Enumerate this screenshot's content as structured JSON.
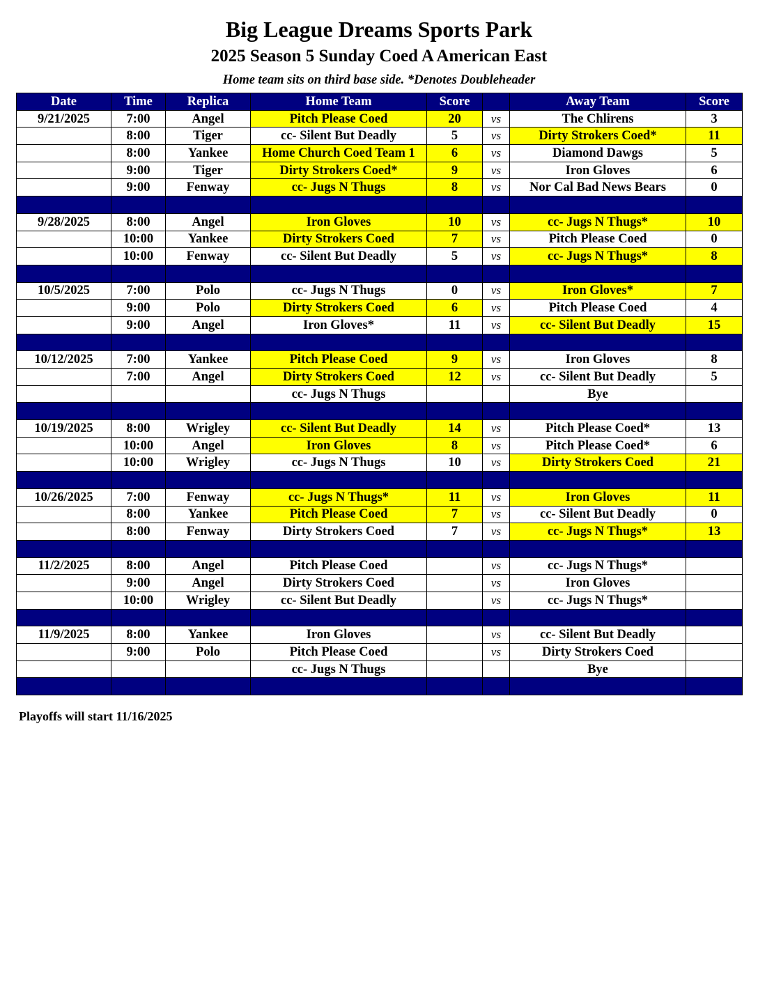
{
  "header": {
    "title": "Big League Dreams Sports Park",
    "subtitle": "2025 Season 5 Sunday Coed A American East",
    "note": "Home team sits on third base side.  *Denotes Doubleheader"
  },
  "colors": {
    "header_bg": "#000080",
    "header_text": "#ffffff",
    "highlight": "#ffff00"
  },
  "columns": [
    "Date",
    "Time",
    "Replica",
    "Home Team",
    "Score",
    "",
    "Away Team",
    "Score"
  ],
  "vs_label": "vs",
  "weeks": [
    {
      "date": "9/21/2025",
      "games": [
        {
          "time": "7:00",
          "replica": "Angel",
          "home": "Pitch Please Coed",
          "home_score": "20",
          "away": "The Chlirens",
          "away_score": "3",
          "home_hl": true,
          "away_hl": false
        },
        {
          "time": "8:00",
          "replica": "Tiger",
          "home": "cc- Silent But Deadly",
          "home_score": "5",
          "away": "Dirty Strokers Coed*",
          "away_score": "11",
          "home_hl": false,
          "away_hl": true
        },
        {
          "time": "8:00",
          "replica": "Yankee",
          "home": "Home Church Coed Team 1",
          "home_score": "6",
          "away": "Diamond Dawgs",
          "away_score": "5",
          "home_hl": true,
          "away_hl": false
        },
        {
          "time": "9:00",
          "replica": "Tiger",
          "home": "Dirty Strokers Coed*",
          "home_score": "9",
          "away": "Iron Gloves",
          "away_score": "6",
          "home_hl": true,
          "away_hl": false
        },
        {
          "time": "9:00",
          "replica": "Fenway",
          "home": "cc- Jugs N Thugs",
          "home_score": "8",
          "away": "Nor Cal Bad News Bears",
          "away_score": "0",
          "home_hl": true,
          "away_hl": false
        }
      ]
    },
    {
      "date": "9/28/2025",
      "games": [
        {
          "time": "8:00",
          "replica": "Angel",
          "home": "Iron Gloves",
          "home_score": "10",
          "away": "cc- Jugs N Thugs*",
          "away_score": "10",
          "home_hl": true,
          "away_hl": true
        },
        {
          "time": "10:00",
          "replica": "Yankee",
          "home": "Dirty Strokers Coed",
          "home_score": "7",
          "away": "Pitch Please Coed",
          "away_score": "0",
          "home_hl": true,
          "away_hl": false
        },
        {
          "time": "10:00",
          "replica": "Fenway",
          "home": "cc- Silent But Deadly",
          "home_score": "5",
          "away": "cc- Jugs N Thugs*",
          "away_score": "8",
          "home_hl": false,
          "away_hl": true
        }
      ]
    },
    {
      "date": "10/5/2025",
      "games": [
        {
          "time": "7:00",
          "replica": "Polo",
          "home": "cc- Jugs N Thugs",
          "home_score": "0",
          "away": "Iron Gloves*",
          "away_score": "7",
          "home_hl": false,
          "away_hl": true
        },
        {
          "time": "9:00",
          "replica": "Polo",
          "home": "Dirty Strokers Coed",
          "home_score": "6",
          "away": "Pitch Please Coed",
          "away_score": "4",
          "home_hl": true,
          "away_hl": false
        },
        {
          "time": "9:00",
          "replica": "Angel",
          "home": "Iron Gloves*",
          "home_score": "11",
          "away": "cc- Silent But Deadly",
          "away_score": "15",
          "home_hl": false,
          "away_hl": true
        }
      ]
    },
    {
      "date": "10/12/2025",
      "games": [
        {
          "time": "7:00",
          "replica": "Yankee",
          "home": "Pitch Please Coed",
          "home_score": "9",
          "away": "Iron Gloves",
          "away_score": "8",
          "home_hl": true,
          "away_hl": false
        },
        {
          "time": "7:00",
          "replica": "Angel",
          "home": "Dirty Strokers Coed",
          "home_score": "12",
          "away": "cc- Silent But Deadly",
          "away_score": "5",
          "home_hl": true,
          "away_hl": false
        },
        {
          "time": "",
          "replica": "",
          "home": "cc- Jugs N Thugs",
          "home_score": "",
          "away": "Bye",
          "away_score": "",
          "home_hl": false,
          "away_hl": false,
          "bye": true
        }
      ]
    },
    {
      "date": "10/19/2025",
      "games": [
        {
          "time": "8:00",
          "replica": "Wrigley",
          "home": "cc- Silent But Deadly",
          "home_score": "14",
          "away": "Pitch Please Coed*",
          "away_score": "13",
          "home_hl": true,
          "away_hl": false
        },
        {
          "time": "10:00",
          "replica": "Angel",
          "home": "Iron Gloves",
          "home_score": "8",
          "away": "Pitch Please Coed*",
          "away_score": "6",
          "home_hl": true,
          "away_hl": false
        },
        {
          "time": "10:00",
          "replica": "Wrigley",
          "home": "cc- Jugs N Thugs",
          "home_score": "10",
          "away": "Dirty Strokers Coed",
          "away_score": "21",
          "home_hl": false,
          "away_hl": true
        }
      ]
    },
    {
      "date": "10/26/2025",
      "games": [
        {
          "time": "7:00",
          "replica": "Fenway",
          "home": "cc- Jugs N Thugs*",
          "home_score": "11",
          "away": "Iron Gloves",
          "away_score": "11",
          "home_hl": true,
          "away_hl": true
        },
        {
          "time": "8:00",
          "replica": "Yankee",
          "home": "Pitch Please Coed",
          "home_score": "7",
          "away": "cc- Silent But Deadly",
          "away_score": "0",
          "home_hl": true,
          "away_hl": false
        },
        {
          "time": "8:00",
          "replica": "Fenway",
          "home": "Dirty Strokers Coed",
          "home_score": "7",
          "away": "cc- Jugs N Thugs*",
          "away_score": "13",
          "home_hl": false,
          "away_hl": true
        }
      ]
    },
    {
      "date": "11/2/2025",
      "games": [
        {
          "time": "8:00",
          "replica": "Angel",
          "home": "Pitch Please Coed",
          "home_score": "",
          "away": "cc- Jugs N Thugs*",
          "away_score": "",
          "home_hl": false,
          "away_hl": false
        },
        {
          "time": "9:00",
          "replica": "Angel",
          "home": "Dirty Strokers Coed",
          "home_score": "",
          "away": "Iron Gloves",
          "away_score": "",
          "home_hl": false,
          "away_hl": false
        },
        {
          "time": "10:00",
          "replica": "Wrigley",
          "home": "cc- Silent But Deadly",
          "home_score": "",
          "away": "cc- Jugs N Thugs*",
          "away_score": "",
          "home_hl": false,
          "away_hl": false
        }
      ]
    },
    {
      "date": "11/9/2025",
      "games": [
        {
          "time": "8:00",
          "replica": "Yankee",
          "home": "Iron Gloves",
          "home_score": "",
          "away": "cc- Silent But Deadly",
          "away_score": "",
          "home_hl": false,
          "away_hl": false
        },
        {
          "time": "9:00",
          "replica": "Polo",
          "home": "Pitch Please Coed",
          "home_score": "",
          "away": "Dirty Strokers Coed",
          "away_score": "",
          "home_hl": false,
          "away_hl": false
        },
        {
          "time": "",
          "replica": "",
          "home": "cc- Jugs N Thugs",
          "home_score": "",
          "away": "Bye",
          "away_score": "",
          "home_hl": false,
          "away_hl": false,
          "bye": true
        }
      ]
    }
  ],
  "footer": "Playoffs will start 11/16/2025"
}
